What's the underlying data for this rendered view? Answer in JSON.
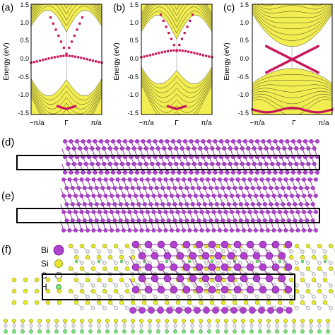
{
  "panels": [
    {
      "label": "(a)"
    },
    {
      "label": "(b)"
    },
    {
      "label": "(c)"
    }
  ],
  "band_axis": {
    "ylabel": "Energy (eV)",
    "ylim": [
      -1.5,
      1.5
    ],
    "yticks": [
      "1.5",
      "1.0",
      "0.5",
      "0.0",
      "-0.5",
      "-1.0",
      "-1.5"
    ],
    "xticks": [
      "−π/a",
      "Γ",
      "π/a"
    ]
  },
  "structure_panels": [
    {
      "label": "(d)"
    },
    {
      "label": "(e)"
    },
    {
      "label": "(f)"
    }
  ],
  "legend": {
    "items": [
      {
        "symbol": "Bi",
        "color": "#b040d0"
      },
      {
        "symbol": "Si",
        "color": "#e6e62a"
      },
      {
        "symbol": "C",
        "color": "#9a9a9a"
      },
      {
        "symbol": "H",
        "color": "#7ee07e"
      }
    ]
  },
  "colors": {
    "band_fill": "#f2ee52",
    "edge_state": "#c8145a",
    "bismuth": "#b040d0",
    "silicon": "#e6e62a",
    "carbon": "#9a9a9a",
    "hydrogen": "#7ee07e"
  }
}
